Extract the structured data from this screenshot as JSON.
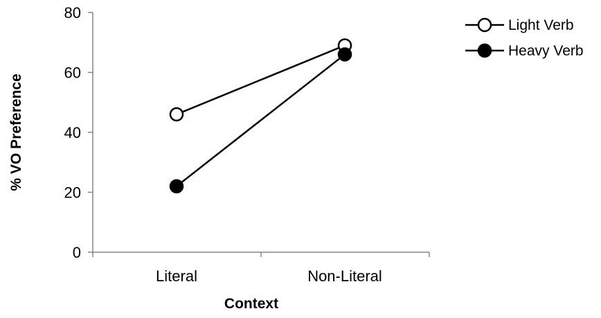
{
  "chart_data": {
    "type": "line",
    "xlabel": "Context",
    "ylabel": "% VO Preference",
    "categories": [
      "Literal",
      "Non-Literal"
    ],
    "ylim": [
      0,
      80
    ],
    "yticks": [
      0,
      20,
      40,
      60,
      80
    ],
    "grid": false,
    "legend_position": "top-right",
    "series": [
      {
        "name": "Light Verb",
        "values": [
          46,
          69
        ],
        "marker": "open-circle",
        "color": "#000000"
      },
      {
        "name": "Heavy Verb",
        "values": [
          22,
          66
        ],
        "marker": "filled-circle",
        "color": "#000000"
      }
    ]
  }
}
